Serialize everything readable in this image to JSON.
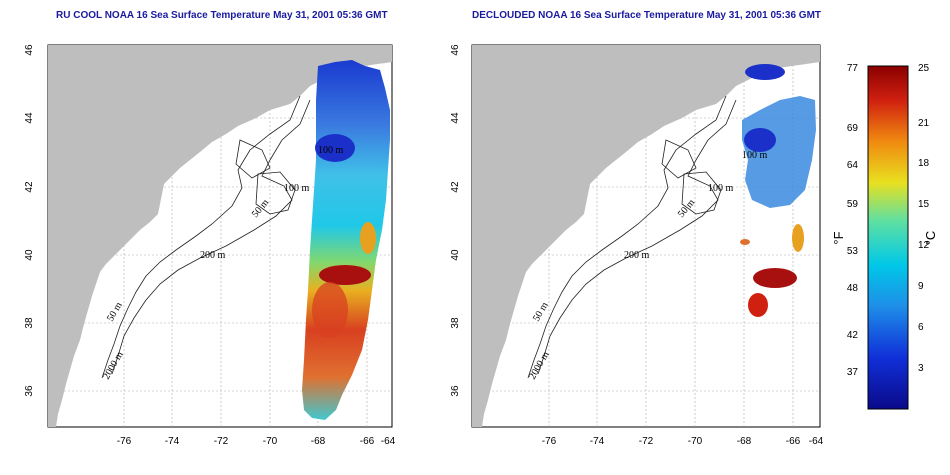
{
  "maps": [
    {
      "id": "left",
      "title": "RU COOL NOAA 16 Sea Surface Temperature May 31, 2001 05:36 GMT",
      "clouded": true
    },
    {
      "id": "right",
      "title": "DECLOUDED NOAA 16 Sea Surface Temperature May 31, 2001 05:36 GMT",
      "clouded": false
    }
  ],
  "lon_ticks": [
    "-76",
    "-74",
    "-72",
    "-70",
    "-68",
    "-66",
    "-64"
  ],
  "lat_ticks": [
    "36",
    "38",
    "40",
    "42",
    "44",
    "46"
  ],
  "contour_labels": [
    "100 m",
    "100 m",
    "50 m",
    "200 m",
    "50 m",
    "2000 m"
  ],
  "colorbar": {
    "fahrenheit_ticks": [
      "77",
      "69",
      "64",
      "59",
      "53",
      "48",
      "42",
      "37"
    ],
    "celsius_ticks": [
      "25",
      "21",
      "18",
      "15",
      "12",
      "9",
      "6",
      "3"
    ],
    "fahrenheit_unit": "°F",
    "celsius_unit": "°C"
  },
  "colors": {
    "title": "#1a1aa0",
    "land": "#bebebe",
    "water": "#ffffff",
    "cold": "#0a1a9a",
    "mid": "#00c8e8",
    "warm": "#e8d020",
    "hot": "#8a0000"
  }
}
